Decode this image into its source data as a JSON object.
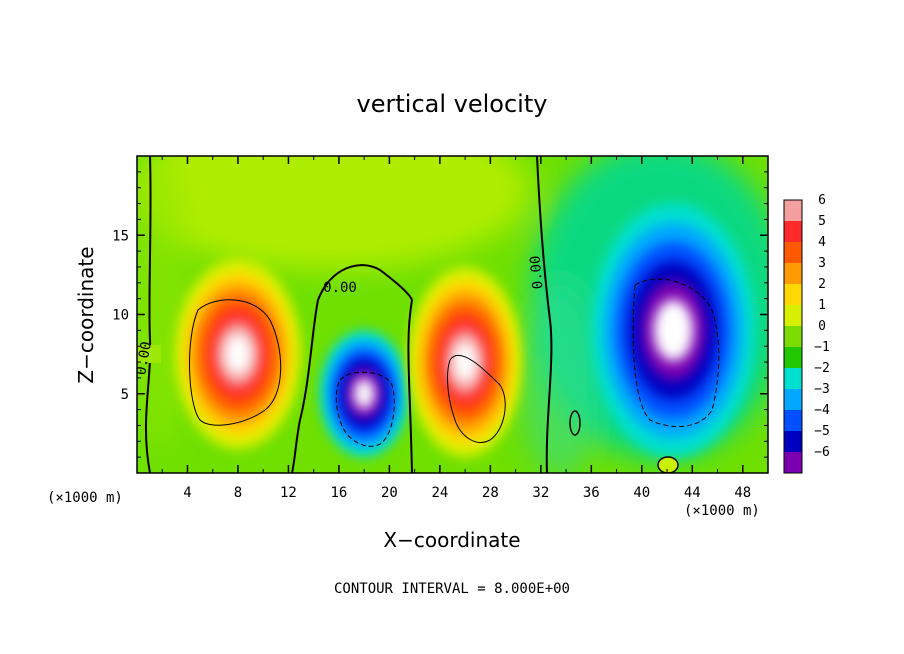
{
  "chart_data": {
    "type": "heatmap",
    "title": "vertical velocity",
    "xlabel": "X−coordinate",
    "ylabel": "Z−coordinate",
    "x_unit": "(×1000 m)",
    "x_unit_right": "(×1000 m)",
    "xlim": [
      0,
      50
    ],
    "ylim": [
      0,
      20
    ],
    "x_ticks": [
      4,
      8,
      12,
      16,
      20,
      24,
      28,
      32,
      36,
      40,
      44,
      48
    ],
    "x_tick_labels": [
      "4",
      "8",
      "12",
      "16",
      "20",
      "24",
      "28",
      "32",
      "36",
      "40",
      "44",
      "48"
    ],
    "y_ticks": [
      5,
      10,
      15
    ],
    "y_tick_labels": [
      "5",
      "10",
      "15"
    ],
    "colorbar": {
      "levels": [
        6,
        5,
        4,
        3,
        2,
        1,
        0,
        -1,
        -2,
        -3,
        -4,
        -5,
        -6
      ],
      "labels": [
        "6",
        "5",
        "4",
        "3",
        "2",
        "1",
        "0",
        "−1",
        "−2",
        "−3",
        "−4",
        "−5",
        "−6"
      ],
      "colors": [
        "#f5a0a0",
        "#ff2a2a",
        "#ff5a00",
        "#ff9a00",
        "#ffd800",
        "#d8f000",
        "#7adc00",
        "#22c800",
        "#00e0d0",
        "#00a8ff",
        "#0050ff",
        "#0000c0",
        "#7a00b0"
      ]
    },
    "contour_interval_text": "CONTOUR INTERVAL = 8.000E+00",
    "contour_labels": [
      "0.00",
      "0.00",
      "0.00"
    ],
    "cells": [
      {
        "name": "updraft-cell-west",
        "x": 8,
        "z": 7.5,
        "rx": 5,
        "rz": 6,
        "peak": 8
      },
      {
        "name": "downdraft-cell-16-20",
        "x": 18,
        "z": 5,
        "rx": 3.5,
        "rz": 4,
        "peak": -8
      },
      {
        "name": "updraft-cell-24-30",
        "x": 26,
        "z": 7,
        "rx": 4.5,
        "rz": 6,
        "peak": 7
      },
      {
        "name": "downdraft-cell-east",
        "x": 42.5,
        "z": 9,
        "rx": 6.5,
        "rz": 8,
        "peak": -8
      }
    ]
  }
}
